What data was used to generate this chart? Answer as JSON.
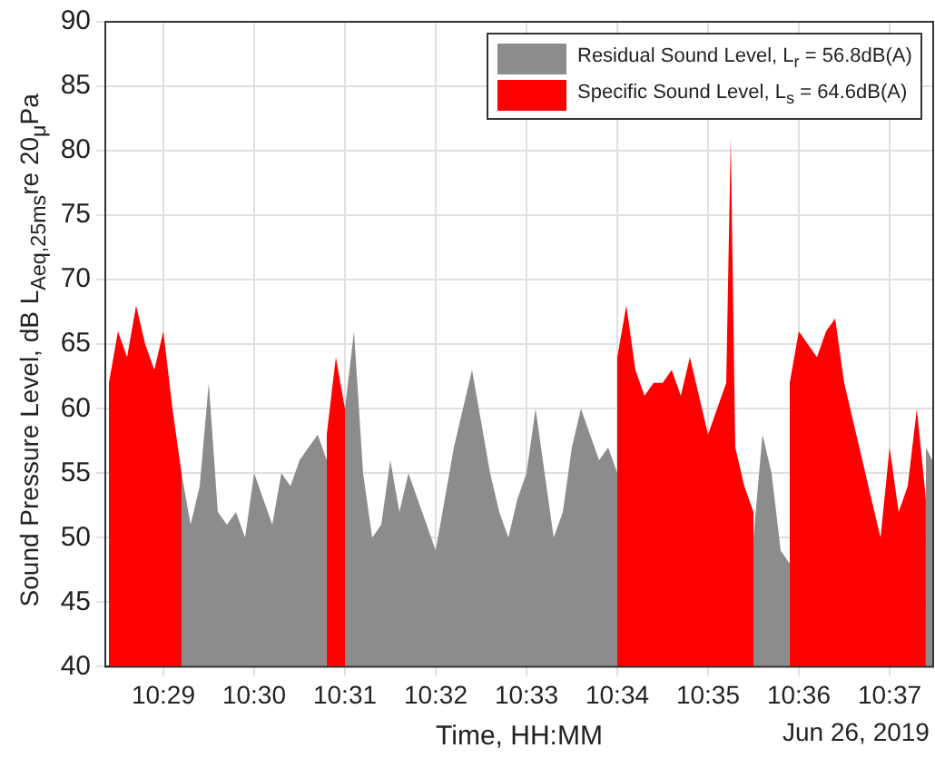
{
  "chart_data": {
    "type": "area",
    "xlabel": "Time, HH:MM",
    "ylabel": "Sound Pressure Level, dB L$_{Aeq,25ms}$re 20$_{μ}$Pa",
    "annotations": [
      "Jun 26, 2019"
    ],
    "xlim": [
      10.47267,
      10.62467
    ],
    "ylim": [
      40,
      90
    ],
    "xticks": [
      {
        "value": 10.48333,
        "label": "10:29"
      },
      {
        "value": 10.5,
        "label": "10:30"
      },
      {
        "value": 10.51667,
        "label": "10:31"
      },
      {
        "value": 10.53333,
        "label": "10:32"
      },
      {
        "value": 10.55,
        "label": "10:33"
      },
      {
        "value": 10.56667,
        "label": "10:34"
      },
      {
        "value": 10.58333,
        "label": "10:35"
      },
      {
        "value": 10.6,
        "label": "10:36"
      },
      {
        "value": 10.61667,
        "label": "10:37"
      }
    ],
    "yticks": [
      40,
      45,
      50,
      55,
      60,
      65,
      70,
      75,
      80,
      85,
      90
    ],
    "grid": true,
    "legend": "top right",
    "series": [
      {
        "name": "Residual Sound Level, L$_{r}$ = 56.8dB(A)",
        "color": "#8c8c8c",
        "x": [
          10.48667,
          10.48833,
          10.49,
          10.49167,
          10.49333,
          10.495,
          10.49667,
          10.49833,
          10.5,
          10.50167,
          10.50333,
          10.505,
          10.50667,
          10.50833,
          10.51,
          10.51167,
          10.51333,
          10.515,
          10.51667,
          10.51833,
          10.52,
          10.52167,
          10.52333,
          10.525,
          10.52667,
          10.52833,
          10.53,
          10.53167,
          10.53333,
          10.535,
          10.53667,
          10.53833,
          10.54,
          10.54167,
          10.54333,
          10.545,
          10.54667,
          10.54833,
          10.55,
          10.55167,
          10.55333,
          10.555,
          10.55667,
          10.55833,
          10.56,
          10.56167,
          10.56333,
          10.565,
          10.56667,
          10.58,
          10.59167,
          10.59333,
          10.595,
          10.59667,
          10.59833,
          10.61,
          10.62333,
          10.6245
        ],
        "values": [
          55,
          51,
          54,
          62,
          52,
          51,
          52,
          50,
          55,
          53,
          51,
          55,
          54,
          56,
          57,
          58,
          56,
          null,
          60,
          66,
          55,
          50,
          51,
          56,
          52,
          55,
          53,
          51,
          49,
          53,
          57,
          60,
          63,
          59,
          55,
          52,
          50,
          53,
          55,
          60,
          55,
          50,
          52,
          57,
          60,
          58,
          56,
          57,
          55,
          null,
          50,
          58,
          55,
          49,
          48,
          null,
          57,
          56
        ]
      },
      {
        "name": "Specific Sound Level, L$_{s}$ = 64.6dB(A)",
        "color": "#ff0000",
        "x": [
          10.47333,
          10.475,
          10.47667,
          10.47833,
          10.48,
          10.48167,
          10.48333,
          10.485,
          10.48667,
          10.5,
          10.51333,
          10.515,
          10.51667,
          10.54,
          10.56667,
          10.56833,
          10.57,
          10.57167,
          10.57333,
          10.575,
          10.57667,
          10.57833,
          10.58,
          10.58167,
          10.58333,
          10.585,
          10.58667,
          10.5875,
          10.58833,
          10.59,
          10.59167,
          10.595,
          10.59833,
          10.6,
          10.60167,
          10.60333,
          10.605,
          10.60667,
          10.60833,
          10.61,
          10.61167,
          10.61333,
          10.615,
          10.61667,
          10.61833,
          10.62,
          10.62167,
          10.62333
        ],
        "values": [
          62,
          66,
          64,
          68,
          65,
          63,
          66,
          60,
          55,
          null,
          58,
          64,
          60,
          null,
          64,
          68,
          63,
          61,
          62,
          62,
          63,
          61,
          64,
          61,
          58,
          60,
          62,
          81,
          57,
          54,
          52,
          null,
          62,
          66,
          65,
          64,
          66,
          67,
          62,
          59,
          56,
          53,
          50,
          57,
          52,
          54,
          60,
          53
        ]
      }
    ]
  }
}
